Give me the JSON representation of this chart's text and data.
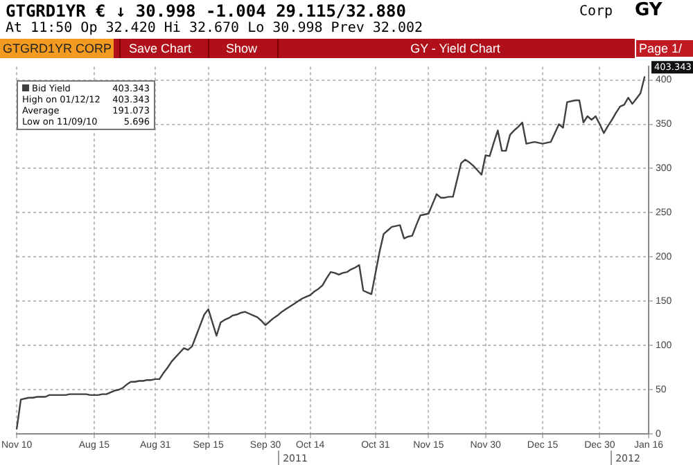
{
  "chart_data": {
    "type": "line",
    "title": "GY - Yield Chart",
    "categories": [
      "Nov 10",
      null,
      null,
      null,
      null,
      null,
      null,
      null,
      null,
      null,
      null,
      null,
      null,
      null,
      null,
      null,
      null,
      null,
      null,
      "Aug 15",
      null,
      null,
      null,
      null,
      null,
      null,
      null,
      null,
      null,
      null,
      null,
      null,
      null,
      null,
      "Aug 31",
      null,
      null,
      null,
      null,
      null,
      null,
      null,
      null,
      null,
      null,
      null,
      null,
      "Sep 15",
      null,
      null,
      null,
      null,
      null,
      null,
      null,
      null,
      null,
      null,
      null,
      null,
      null,
      "Sep 30",
      null,
      null,
      null,
      null,
      null,
      null,
      null,
      null,
      null,
      null,
      "Oct 14",
      null,
      null,
      null,
      null,
      null,
      null,
      null,
      null,
      null,
      null,
      null,
      null,
      null,
      null,
      null,
      "Oct 31",
      null,
      null,
      null,
      null,
      null,
      null,
      null,
      null,
      null,
      null,
      null,
      null,
      "Nov 15",
      null,
      null,
      null,
      null,
      null,
      null,
      null,
      null,
      null,
      null,
      null,
      null,
      null,
      "Nov 30",
      null,
      null,
      null,
      null,
      null,
      null,
      null,
      null,
      null,
      null,
      null,
      null,
      null,
      "Dec 15",
      null,
      null,
      null,
      null,
      null,
      null,
      null,
      null,
      null,
      null,
      null,
      null,
      null,
      "Dec 30",
      null,
      null,
      null,
      null,
      null,
      null,
      null,
      null,
      null,
      null,
      null,
      "Jan 16"
    ],
    "series": [
      {
        "name": "Bid Yield",
        "color": "#404040",
        "values": [
          6,
          39,
          40,
          41,
          41,
          42,
          42,
          42,
          44,
          44,
          44,
          44,
          44,
          45,
          45,
          45,
          45,
          45,
          44,
          44,
          44,
          45,
          45,
          47,
          49,
          50,
          52,
          56,
          59,
          59,
          60,
          60,
          61,
          61,
          62,
          62,
          69,
          75,
          82,
          87,
          92,
          97,
          95,
          99,
          111,
          123,
          135,
          141,
          126,
          111,
          126,
          129,
          131,
          134,
          135,
          137,
          138,
          136,
          134,
          132,
          128,
          123,
          127,
          131,
          134,
          138,
          141,
          144,
          147,
          150,
          153,
          155,
          157,
          161,
          164,
          168,
          176,
          183,
          182,
          180,
          182,
          183,
          186,
          188,
          191,
          162,
          160,
          158,
          182,
          206,
          226,
          230,
          234,
          235,
          236,
          221,
          223,
          224,
          236,
          247,
          248,
          249,
          260,
          271,
          267,
          267,
          268,
          268,
          287,
          306,
          310,
          307,
          303,
          298,
          293,
          315,
          314,
          329,
          343,
          320,
          320,
          338,
          343,
          347,
          352,
          328,
          329,
          330,
          329,
          328,
          329,
          330,
          340,
          350,
          346,
          375,
          376,
          377,
          377,
          352,
          359,
          355,
          359,
          350,
          340,
          348,
          355,
          363,
          370,
          372,
          380,
          373,
          379,
          385,
          403.343,
          null
        ]
      }
    ],
    "ylim": [
      0,
      415
    ],
    "yticks": [
      0,
      50,
      100,
      150,
      200,
      250,
      300,
      350,
      400
    ],
    "grid": true,
    "legend": "top left",
    "marker": "none",
    "line_style": "solid",
    "annotations": [
      "GTGRD1YR € ↓ 30.998 -1.004 29.115/32.880",
      "Corp",
      "GY",
      "At 11:50 Op 32.420 Hi 32.670 Lo 30.998 Prev 32.002",
      "GTGRD1YR CORP",
      "Save Chart",
      "Show",
      "Page 1/",
      "403.343",
      "High on 01/12/12",
      "403.343",
      "Average",
      "191.073",
      "Low on 11/09/10",
      "5.696",
      "403.343",
      "2011",
      "2012"
    ]
  }
}
